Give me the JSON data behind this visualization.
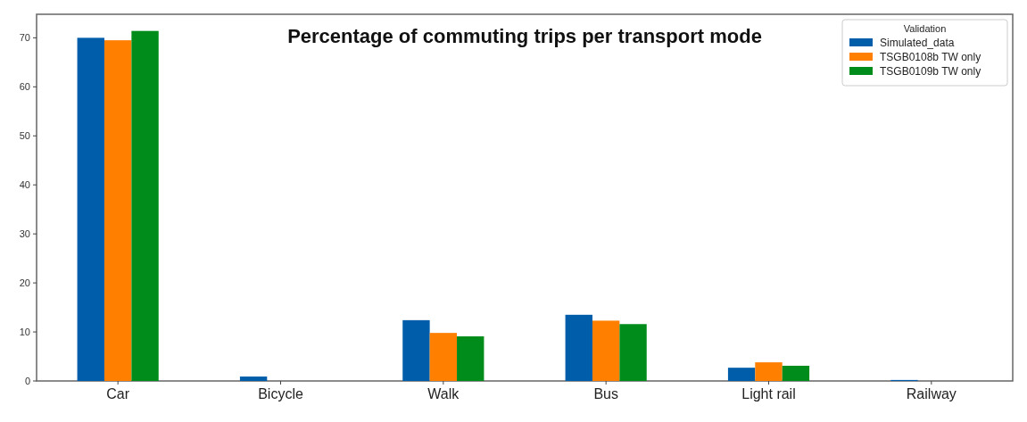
{
  "chart_data": {
    "type": "bar",
    "title": "Percentage of commuting trips per transport mode",
    "categories": [
      "Car",
      "Bicycle",
      "Walk",
      "Bus",
      "Light rail",
      "Railway"
    ],
    "series": [
      {
        "name": "Simulated_data",
        "color": "#005daa",
        "values": [
          70,
          0.9,
          12.4,
          13.5,
          2.7,
          0.2
        ]
      },
      {
        "name": "TSGB0108b TW only",
        "color": "#ff7f00",
        "values": [
          69.5,
          0,
          9.8,
          12.3,
          3.8,
          0
        ]
      },
      {
        "name": "TSGB0109b TW only",
        "color": "#008c1a",
        "values": [
          71.4,
          0,
          9.1,
          11.6,
          3.1,
          0
        ]
      }
    ],
    "ylim": [
      0,
      74.8
    ],
    "yticks": [
      0,
      10,
      20,
      30,
      40,
      50,
      60,
      70
    ],
    "legend": "top right",
    "legend_title": "Validation",
    "grid": false
  }
}
